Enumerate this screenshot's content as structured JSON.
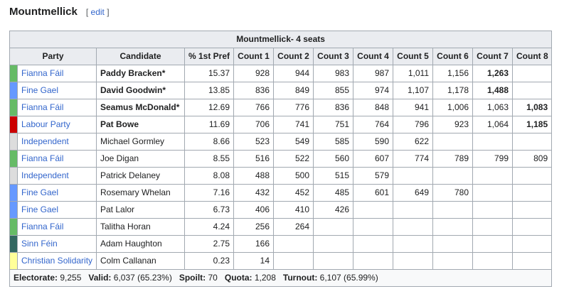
{
  "section": {
    "title": "Mountmellick",
    "edit_open": "[ ",
    "edit_label": "edit",
    "edit_close": " ]"
  },
  "table": {
    "caption": "Mountmellick- 4 seats",
    "headers": [
      "Party",
      "Candidate",
      "% 1st Pref",
      "Count 1",
      "Count 2",
      "Count 3",
      "Count 4",
      "Count 5",
      "Count 6",
      "Count 7",
      "Count 8"
    ],
    "rows": [
      {
        "party": "Fianna Fáil",
        "color": "#66bb66",
        "candidate": "Paddy Bracken*",
        "elected": true,
        "pref": "15.37",
        "counts": [
          "928",
          "944",
          "983",
          "987",
          "1,011",
          "1,156",
          "1,263",
          ""
        ],
        "bold_count": 6
      },
      {
        "party": "Fine Gael",
        "color": "#6699ff",
        "candidate": "David Goodwin*",
        "elected": true,
        "pref": "13.85",
        "counts": [
          "836",
          "849",
          "855",
          "974",
          "1,107",
          "1,178",
          "1,488",
          ""
        ],
        "bold_count": 6
      },
      {
        "party": "Fianna Fáil",
        "color": "#66bb66",
        "candidate": "Seamus McDonald*",
        "elected": true,
        "pref": "12.69",
        "counts": [
          "766",
          "776",
          "836",
          "848",
          "941",
          "1,006",
          "1,063",
          "1,083"
        ],
        "bold_count": 7
      },
      {
        "party": "Labour Party",
        "color": "#cc0000",
        "candidate": "Pat Bowe",
        "elected": true,
        "pref": "11.69",
        "counts": [
          "706",
          "741",
          "751",
          "764",
          "796",
          "923",
          "1,064",
          "1,185"
        ],
        "bold_count": 7
      },
      {
        "party": "Independent",
        "color": "#dddddd",
        "candidate": "Michael Gormley",
        "elected": false,
        "pref": "8.66",
        "counts": [
          "523",
          "549",
          "585",
          "590",
          "622",
          "",
          "",
          ""
        ],
        "bold_count": -1
      },
      {
        "party": "Fianna Fáil",
        "color": "#66bb66",
        "candidate": "Joe Digan",
        "elected": false,
        "pref": "8.55",
        "counts": [
          "516",
          "522",
          "560",
          "607",
          "774",
          "789",
          "799",
          "809"
        ],
        "bold_count": -1
      },
      {
        "party": "Independent",
        "color": "#dddddd",
        "candidate": "Patrick Delaney",
        "elected": false,
        "pref": "8.08",
        "counts": [
          "488",
          "500",
          "515",
          "579",
          "",
          "",
          "",
          ""
        ],
        "bold_count": -1
      },
      {
        "party": "Fine Gael",
        "color": "#6699ff",
        "candidate": "Rosemary Whelan",
        "elected": false,
        "pref": "7.16",
        "counts": [
          "432",
          "452",
          "485",
          "601",
          "649",
          "780",
          "",
          ""
        ],
        "bold_count": -1
      },
      {
        "party": "Fine Gael",
        "color": "#6699ff",
        "candidate": "Pat Lalor",
        "elected": false,
        "pref": "6.73",
        "counts": [
          "406",
          "410",
          "426",
          "",
          "",
          "",
          "",
          ""
        ],
        "bold_count": -1
      },
      {
        "party": "Fianna Fáil",
        "color": "#66bb66",
        "candidate": "Talitha Horan",
        "elected": false,
        "pref": "4.24",
        "counts": [
          "256",
          "264",
          "",
          "",
          "",
          "",
          "",
          ""
        ],
        "bold_count": -1
      },
      {
        "party": "Sinn Féin",
        "color": "#326760",
        "candidate": "Adam Haughton",
        "elected": false,
        "pref": "2.75",
        "counts": [
          "166",
          "",
          "",
          "",
          "",
          "",
          "",
          ""
        ],
        "bold_count": -1
      },
      {
        "party": "Christian Solidarity",
        "color": "#ffff99",
        "candidate": "Colm Callanan",
        "elected": false,
        "pref": "0.23",
        "counts": [
          "14",
          "",
          "",
          "",
          "",
          "",
          "",
          ""
        ],
        "bold_count": -1
      }
    ],
    "footer": [
      {
        "label": "Electorate:",
        "value": "9,255"
      },
      {
        "label": "Valid:",
        "value": "6,037 (65.23%)"
      },
      {
        "label": "Spoilt:",
        "value": "70"
      },
      {
        "label": "Quota:",
        "value": "1,208"
      },
      {
        "label": "Turnout:",
        "value": "6,107 (65.99%)"
      }
    ]
  }
}
